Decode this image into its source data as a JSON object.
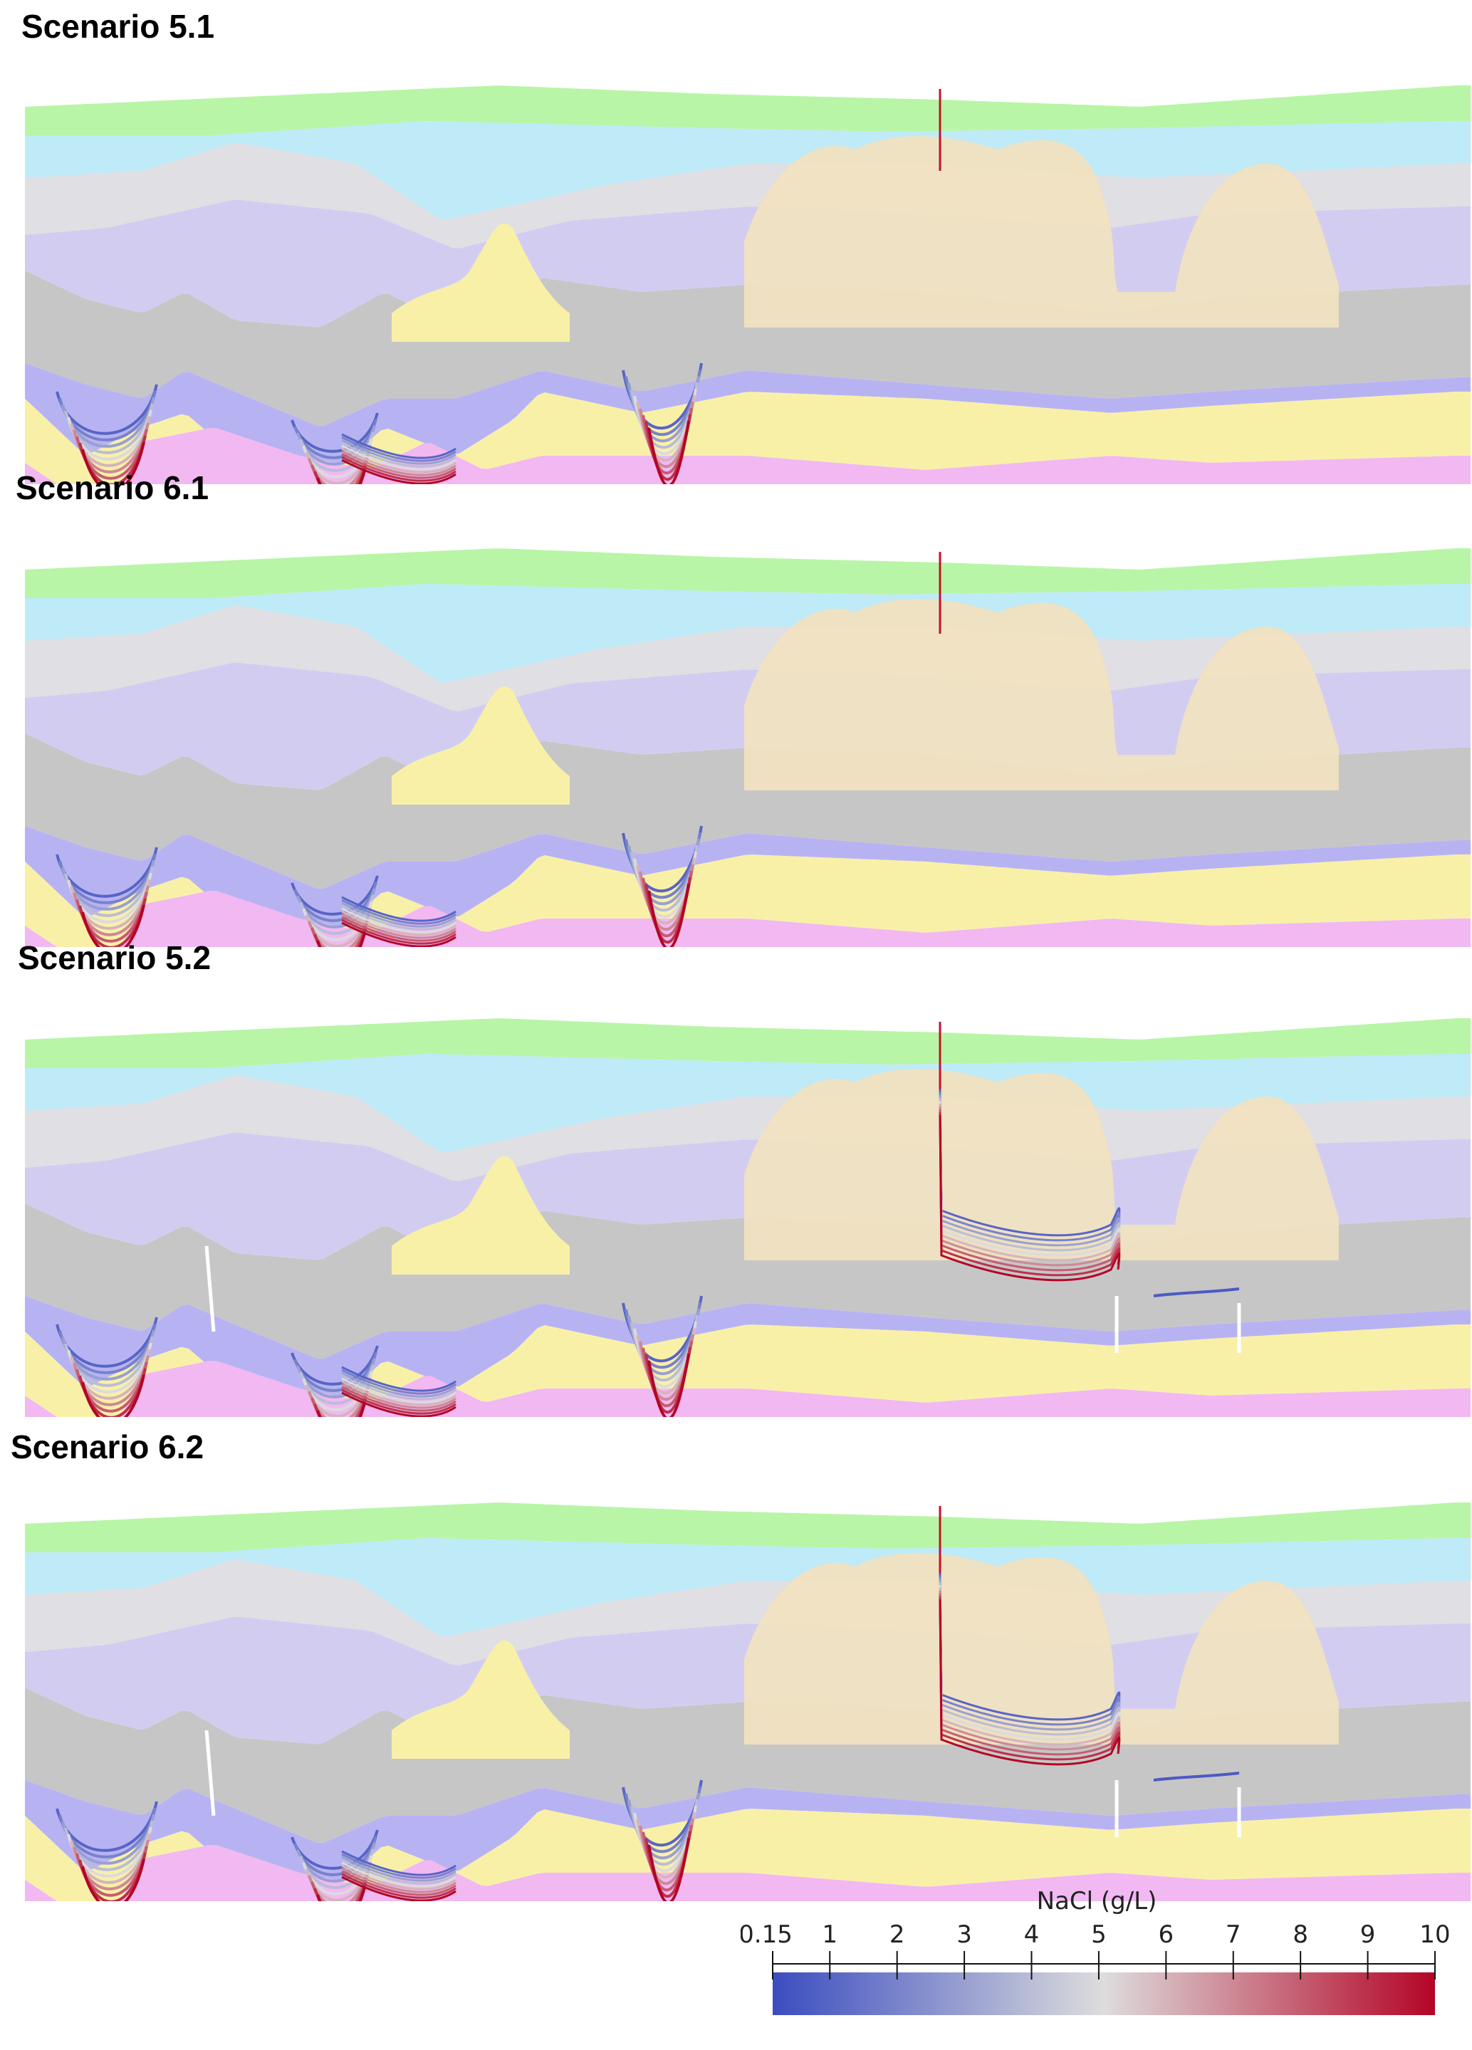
{
  "panels": [
    {
      "title": "Scenario 5.1",
      "fault_plumes": false
    },
    {
      "title": "Scenario 6.1",
      "fault_plumes": false
    },
    {
      "title": "Scenario 5.2",
      "fault_plumes": true
    },
    {
      "title": "Scenario 6.2",
      "fault_plumes": true
    }
  ],
  "chart_data": {
    "type": "heatmap",
    "colorbar": {
      "label": "NaCl (g/L)",
      "ticks": [
        "0.15",
        "1",
        "2",
        "3",
        "4",
        "5",
        "6",
        "7",
        "8",
        "9",
        "10"
      ],
      "tick_values": [
        0.15,
        1,
        2,
        3,
        4,
        5,
        6,
        7,
        8,
        9,
        10
      ],
      "range": [
        0.15,
        10
      ],
      "colormap": "coolwarm",
      "low_color": "#3b4cc0",
      "mid_color": "#dddddd",
      "high_color": "#b40426"
    },
    "isoline_levels": [
      1,
      2,
      3,
      4,
      5,
      6,
      7,
      8,
      9,
      10
    ],
    "layer_colors": {
      "top": "#b8f5a6",
      "shallow_a": "#bfeaf7",
      "shallow_b": "#dfdfe4",
      "shallow_c": "#d2cdf0",
      "marl": "#c6c6c6",
      "lower_blue": "#b7b3f3",
      "sandstone": "#f0e2c0",
      "yellow": "#f9f0a8",
      "salt_pink": "#f2b8f2",
      "basement": "#fdf6d5"
    }
  }
}
